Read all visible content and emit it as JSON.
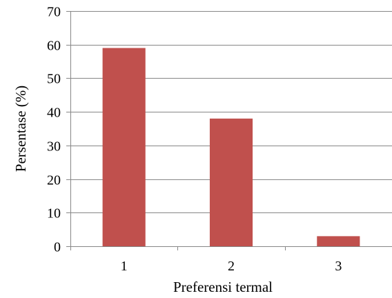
{
  "chart_data": {
    "type": "bar",
    "title": "",
    "xlabel": "Preferensi termal",
    "ylabel": "Persentase (%)",
    "categories": [
      "1",
      "2",
      "3"
    ],
    "values": [
      59,
      38,
      3
    ],
    "ylim": [
      0,
      70
    ],
    "yticks": [
      "0",
      "10",
      "20",
      "30",
      "40",
      "50",
      "60",
      "70"
    ],
    "grid": true,
    "legend": "none",
    "bar_color": "#c0504d",
    "grid_color": "#868686"
  }
}
